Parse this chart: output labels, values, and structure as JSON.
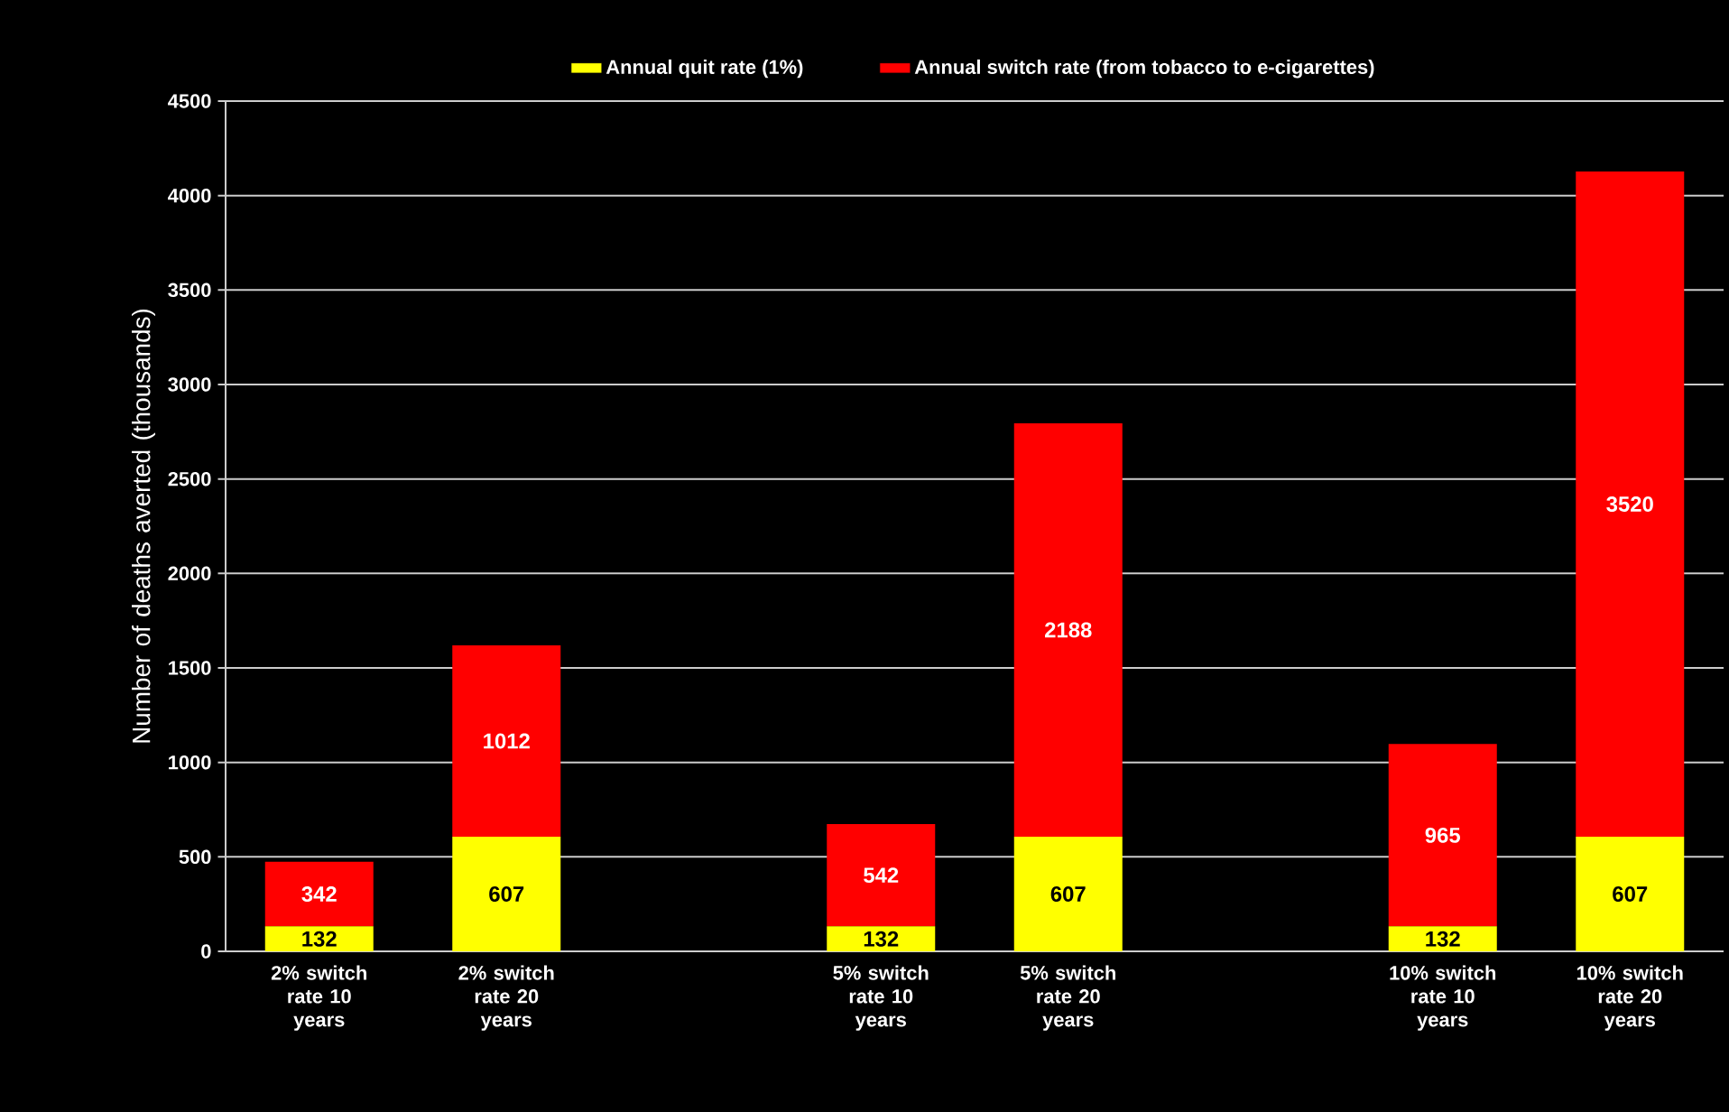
{
  "chart_data": {
    "type": "bar",
    "stacked": true,
    "ylabel": "Number of deaths averted (thousands)",
    "categories": [
      "2% switch rate 10 years",
      "2% switch rate 20 years",
      null,
      "5% switch rate 10 years",
      "5% switch rate 20 years",
      null,
      "10% switch rate 10 years",
      "10% switch rate 20 years"
    ],
    "series": [
      {
        "name": "Annual quit rate (1%)",
        "color": "#ffff00",
        "values": [
          132,
          607,
          null,
          132,
          607,
          null,
          132,
          607
        ]
      },
      {
        "name": "Annual switch rate (from tobacco to e-cigarettes)",
        "color": "#ff0000",
        "values": [
          342,
          1012,
          null,
          542,
          2188,
          null,
          965,
          3520
        ]
      }
    ],
    "ylim": [
      0,
      4500
    ],
    "yticks": [
      0,
      500,
      1000,
      1500,
      2000,
      2500,
      3000,
      3500,
      4000,
      4500
    ],
    "grid": "y",
    "legend": "top",
    "data_labels": true
  }
}
